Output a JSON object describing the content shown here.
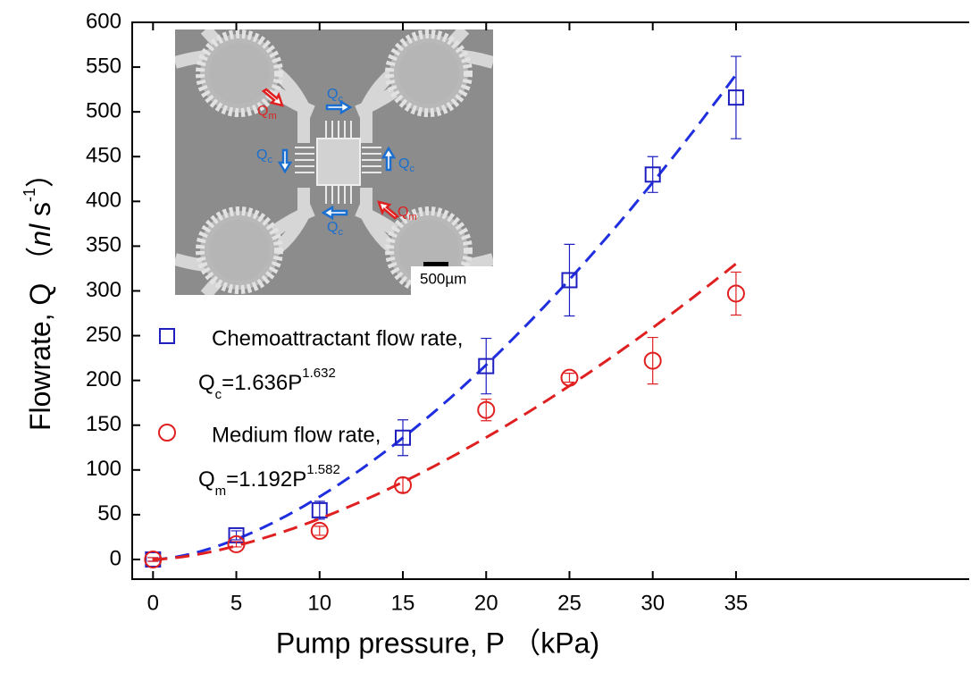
{
  "chart_data": {
    "type": "scatter",
    "x_label": "Pump pressure, P （kPa)",
    "y_label_parts": [
      "Flowrate, Q （",
      "nl",
      " s",
      "-1",
      "）"
    ],
    "xlim": [
      -1.25,
      49
    ],
    "ylim": [
      -22,
      600
    ],
    "xticks": [
      0,
      5,
      10,
      15,
      20,
      25,
      30,
      35
    ],
    "yticks": [
      0,
      50,
      100,
      150,
      200,
      250,
      300,
      350,
      400,
      450,
      500,
      550,
      600
    ],
    "x": [
      0,
      5,
      10,
      15,
      20,
      25,
      30,
      35
    ],
    "series": [
      {
        "name": "Chemoattractant flow rate,",
        "color": "#1f1fbf",
        "marker": "square",
        "values": [
          0,
          27,
          55,
          136,
          216,
          312,
          430,
          516
        ],
        "errors": [
          2,
          5,
          10,
          20,
          31,
          40,
          20,
          46
        ],
        "fit": {
          "coefficient": 1.636,
          "exponent": 1.632,
          "range": [
            0,
            35
          ],
          "color": "#1f2fe0"
        },
        "fit_label": {
          "symbol": "Q",
          "subscript": "c",
          "equals": "=1.636P",
          "superscript": "1.632"
        }
      },
      {
        "name": "Medium flow rate,",
        "color": "#e02020",
        "marker": "circle",
        "values": [
          0,
          17,
          32,
          83,
          167,
          203,
          222,
          297
        ],
        "errors": [
          2,
          3,
          5,
          8,
          12,
          5,
          26,
          24
        ],
        "fit": {
          "coefficient": 1.192,
          "exponent": 1.582,
          "range": [
            0,
            35
          ],
          "color": "#e02020"
        },
        "fit_label": {
          "symbol": "Q",
          "subscript": "m",
          "equals": "=1.192P",
          "superscript": "1.582"
        }
      }
    ],
    "inset": {
      "labels": [
        {
          "text": "Q",
          "sub": "m",
          "color": "#e02020"
        },
        {
          "text": "Q",
          "sub": "c",
          "color": "#1a6fd0"
        },
        {
          "text": "Q",
          "sub": "c",
          "color": "#1a6fd0"
        },
        {
          "text": "Q",
          "sub": "c",
          "color": "#1a6fd0"
        },
        {
          "text": "Q",
          "sub": "m",
          "color": "#e02020"
        },
        {
          "text": "Q",
          "sub": "c",
          "color": "#1a6fd0"
        }
      ],
      "scale_bar": "500µm"
    }
  }
}
